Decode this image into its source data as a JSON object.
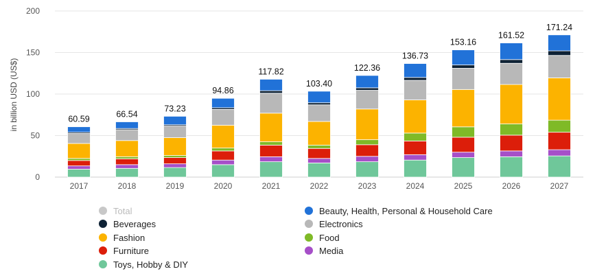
{
  "chart_data": {
    "type": "bar",
    "stacked": true,
    "title": "",
    "xlabel": "",
    "ylabel": "in billion USD (US$)",
    "ylim": [
      0,
      200
    ],
    "yticks": [
      0,
      50,
      100,
      150,
      200
    ],
    "grid": true,
    "categories": [
      "2017",
      "2018",
      "2019",
      "2020",
      "2021",
      "2022",
      "2023",
      "2024",
      "2025",
      "2026",
      "2027"
    ],
    "totals": [
      "60.59",
      "66.54",
      "73.23",
      "94.86",
      "117.82",
      "103.40",
      "122.36",
      "136.73",
      "153.16",
      "161.52",
      "171.24"
    ],
    "series": [
      {
        "name": "Toys, Hobby & DIY",
        "color": "#6fc79a",
        "values": [
          9.5,
          10.5,
          11.5,
          15,
          18.5,
          17,
          18.5,
          20.5,
          23.5,
          24.5,
          25.5
        ]
      },
      {
        "name": "Media",
        "color": "#a64fc8",
        "values": [
          4,
          4.5,
          4.5,
          5.5,
          6,
          5.5,
          6.5,
          6.5,
          6.5,
          7,
          7.5
        ]
      },
      {
        "name": "Furniture",
        "color": "#dc1e0a",
        "values": [
          6.5,
          7,
          7.5,
          11,
          14,
          12,
          14,
          16.5,
          18,
          19,
          21
        ]
      },
      {
        "name": "Food",
        "color": "#7fba27",
        "values": [
          2.5,
          2.5,
          2.5,
          3.5,
          4,
          4,
          6,
          9.5,
          12.5,
          13.5,
          14.5
        ]
      },
      {
        "name": "Fashion",
        "color": "#fcb300",
        "values": [
          18,
          19.5,
          21.5,
          27.5,
          34.5,
          28.5,
          37,
          40,
          45,
          47.5,
          51
        ]
      },
      {
        "name": "Electronics",
        "color": "#b8b8b8",
        "values": [
          12,
          13,
          14,
          19,
          24,
          20,
          22.5,
          23.5,
          25.5,
          25.5,
          27
        ]
      },
      {
        "name": "Beverages",
        "color": "#0e2235",
        "values": [
          1.5,
          1.5,
          1.5,
          2,
          3,
          2.5,
          3,
          3.5,
          4,
          4.5,
          5.5
        ]
      },
      {
        "name": "Beauty, Health, Personal & Household Care",
        "color": "#2172d8",
        "values": [
          6.59,
          8.04,
          10.23,
          11.36,
          13.82,
          13.9,
          14.86,
          16.73,
          18.16,
          20.02,
          19.24
        ]
      }
    ]
  },
  "legend": [
    {
      "name": "Total",
      "color": "#c8c8c8",
      "muted": true
    },
    {
      "name": "Beauty, Health, Personal & Household Care",
      "color": "#2172d8",
      "muted": false
    },
    {
      "name": "Beverages",
      "color": "#0e2235",
      "muted": false
    },
    {
      "name": "Electronics",
      "color": "#b8b8b8",
      "muted": false
    },
    {
      "name": "Fashion",
      "color": "#fcb300",
      "muted": false
    },
    {
      "name": "Food",
      "color": "#7fba27",
      "muted": false
    },
    {
      "name": "Furniture",
      "color": "#dc1e0a",
      "muted": false
    },
    {
      "name": "Media",
      "color": "#a64fc8",
      "muted": false
    },
    {
      "name": "Toys, Hobby & DIY",
      "color": "#6fc79a",
      "muted": false
    }
  ]
}
